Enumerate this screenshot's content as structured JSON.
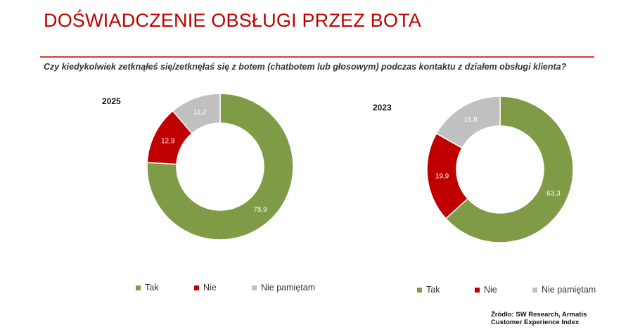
{
  "header": {
    "title": "DOŚWIADCZENIE OBSŁUGI PRZEZ BOTA",
    "question": "Czy kiedykolwiek zetknąłeś się/zetknęłaś się z botem (chatbotem lub głosowym) podczas kontaktu z działem obsługi klienta?"
  },
  "colors": {
    "Tak": "#7f9b45",
    "Nie": "#c00000",
    "Nie pamiętam": "#c0c0c0",
    "accent": "#c00000"
  },
  "chart_data": [
    {
      "type": "pie",
      "donut": true,
      "title": "2025",
      "categories": [
        "Tak",
        "Nie",
        "Nie pamiętam"
      ],
      "values": [
        75.9,
        12.9,
        11.2
      ],
      "value_labels": [
        "75,9",
        "12,9",
        "11,2"
      ],
      "legend": "bottom"
    },
    {
      "type": "pie",
      "donut": true,
      "title": "2023",
      "categories": [
        "Tak",
        "Nie",
        "Nie pamiętam"
      ],
      "values": [
        63.3,
        19.9,
        16.8
      ],
      "value_labels": [
        "63,3",
        "19,9",
        "16,8"
      ],
      "legend": "bottom"
    }
  ],
  "legend_items": [
    "Tak",
    "Nie",
    "Nie pamiętam"
  ],
  "footer": {
    "source_line1": "Źródło: SW Research, Armatis",
    "source_line2": "Customer Experience Index"
  }
}
